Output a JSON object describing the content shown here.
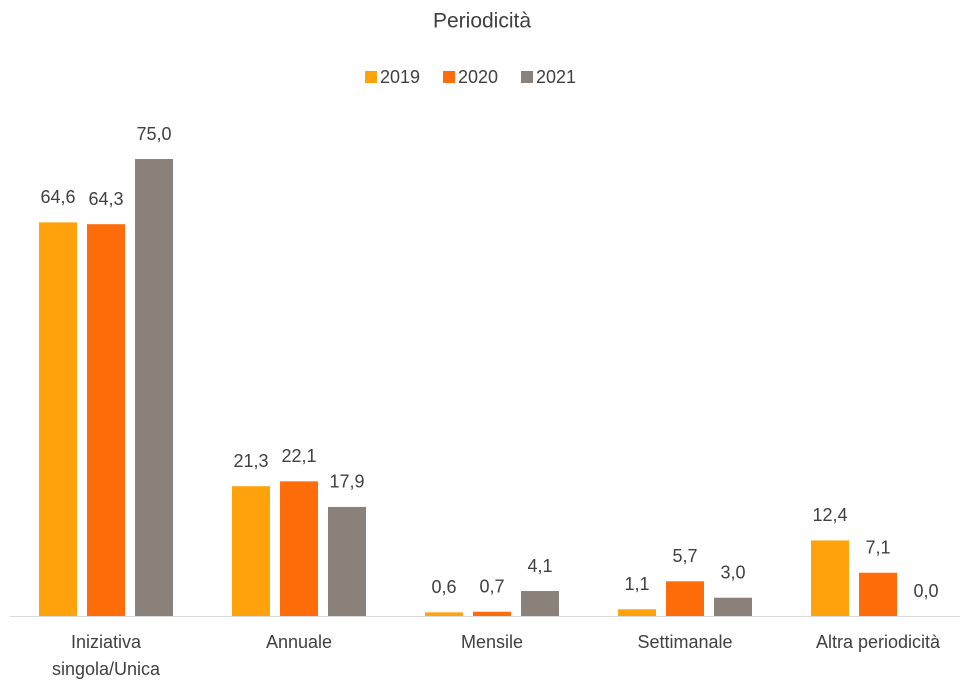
{
  "chart_data": {
    "type": "bar",
    "title": "Periodicità",
    "categories": [
      "Iniziativa singola/Unica",
      "Annuale",
      "Mensile",
      "Settimanale",
      "Altra periodicità"
    ],
    "series": [
      {
        "name": "2019",
        "color": "#ffa20b",
        "values": [
          64.6,
          21.3,
          0.6,
          1.1,
          12.4
        ],
        "value_labels": [
          "64,6",
          "21,3",
          "0,6",
          "1,1",
          "12,4"
        ]
      },
      {
        "name": "2020",
        "color": "#ff6d0a",
        "values": [
          64.3,
          22.1,
          0.7,
          5.7,
          7.1
        ],
        "value_labels": [
          "64,3",
          "22,1",
          "0,7",
          "5,7",
          "7,1"
        ]
      },
      {
        "name": "2021",
        "color": "#8a817b",
        "values": [
          75.0,
          17.9,
          4.1,
          3.0,
          0.0
        ],
        "value_labels": [
          "75,0",
          "17,9",
          "4,1",
          "3,0",
          "0,0"
        ]
      }
    ],
    "legend": "top"
  }
}
